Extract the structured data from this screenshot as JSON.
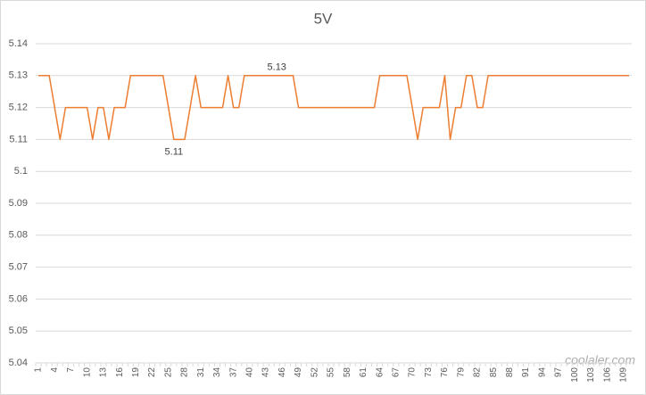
{
  "chart_data": {
    "type": "line",
    "title": "5V",
    "categories": [
      1,
      null,
      null,
      4,
      null,
      null,
      7,
      null,
      null,
      10,
      null,
      null,
      13,
      null,
      null,
      16,
      null,
      null,
      19,
      null,
      null,
      22,
      null,
      null,
      25,
      null,
      null,
      28,
      null,
      null,
      31,
      null,
      null,
      34,
      null,
      null,
      37,
      null,
      null,
      40,
      null,
      null,
      43,
      null,
      null,
      46,
      null,
      null,
      49,
      null,
      null,
      52,
      null,
      null,
      55,
      null,
      null,
      58,
      null,
      null,
      61,
      null,
      null,
      64,
      null,
      null,
      67,
      null,
      null,
      70,
      null,
      null,
      73,
      null,
      null,
      76,
      null,
      null,
      79,
      null,
      null,
      82,
      null,
      null,
      85,
      null,
      null,
      88,
      null,
      null,
      91,
      null,
      null,
      94,
      null,
      null,
      97,
      null,
      null,
      100,
      null,
      null,
      103,
      null,
      null,
      106,
      null,
      null,
      109,
      null
    ],
    "values": [
      5.13,
      5.13,
      5.13,
      5.12,
      5.11,
      5.12,
      5.12,
      5.12,
      5.12,
      5.12,
      5.11,
      5.12,
      5.12,
      5.11,
      5.12,
      5.12,
      5.12,
      5.13,
      5.13,
      5.13,
      5.13,
      5.13,
      5.13,
      5.13,
      5.12,
      5.11,
      5.11,
      5.11,
      5.12,
      5.13,
      5.12,
      5.12,
      5.12,
      5.12,
      5.12,
      5.13,
      5.12,
      5.12,
      5.13,
      5.13,
      5.13,
      5.13,
      5.13,
      5.13,
      5.13,
      5.13,
      5.13,
      5.13,
      5.12,
      5.12,
      5.12,
      5.12,
      5.12,
      5.12,
      5.12,
      5.12,
      5.12,
      5.12,
      5.12,
      5.12,
      5.12,
      5.12,
      5.12,
      5.13,
      5.13,
      5.13,
      5.13,
      5.13,
      5.13,
      5.12,
      5.11,
      5.12,
      5.12,
      5.12,
      5.12,
      5.13,
      5.11,
      5.12,
      5.12,
      5.13,
      5.13,
      5.12,
      5.12,
      5.13,
      5.13,
      5.13,
      5.13,
      5.13,
      5.13,
      5.13,
      5.13,
      5.13,
      5.13,
      5.13,
      5.13,
      5.13,
      5.13,
      5.13,
      5.13,
      5.13,
      5.13,
      5.13,
      5.13,
      5.13,
      5.13,
      5.13,
      5.13,
      5.13,
      5.13,
      5.13
    ],
    "value_labels": [
      null,
      null,
      null,
      null,
      null,
      null,
      null,
      null,
      null,
      null,
      null,
      null,
      null,
      null,
      null,
      null,
      null,
      null,
      null,
      null,
      null,
      null,
      null,
      null,
      null,
      "5.11",
      null,
      null,
      null,
      null,
      null,
      null,
      null,
      null,
      null,
      null,
      null,
      null,
      null,
      null,
      null,
      null,
      null,
      null,
      "5.13",
      null,
      null,
      null,
      null,
      null,
      null,
      null,
      null,
      null,
      null,
      null,
      null,
      null,
      null,
      null,
      null,
      null,
      null,
      null,
      null,
      null,
      null,
      null,
      null,
      null,
      null,
      null,
      null,
      null,
      null,
      null,
      null,
      null,
      null,
      null,
      null,
      null,
      null,
      null,
      null,
      null,
      null,
      null,
      null,
      null,
      null,
      null,
      null,
      null,
      null,
      null,
      null,
      null,
      null,
      null,
      null,
      null,
      null,
      null,
      null,
      null,
      null,
      null,
      null,
      null
    ],
    "color": "#ed7d31",
    "ylim": [
      5.04,
      5.14
    ],
    "yticks": [
      5.04,
      5.05,
      5.06,
      5.07,
      5.08,
      5.09,
      5.1,
      5.11,
      5.12,
      5.13,
      5.14
    ],
    "grid": true,
    "watermark": "coolaler.com"
  }
}
